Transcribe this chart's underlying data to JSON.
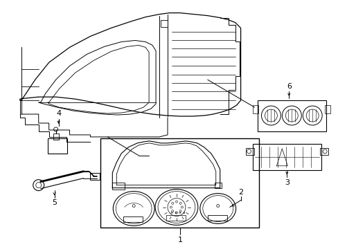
{
  "bg_color": "#ffffff",
  "line_color": "#000000",
  "fig_width": 4.89,
  "fig_height": 3.6,
  "dpi": 100,
  "label_fontsize": 8
}
